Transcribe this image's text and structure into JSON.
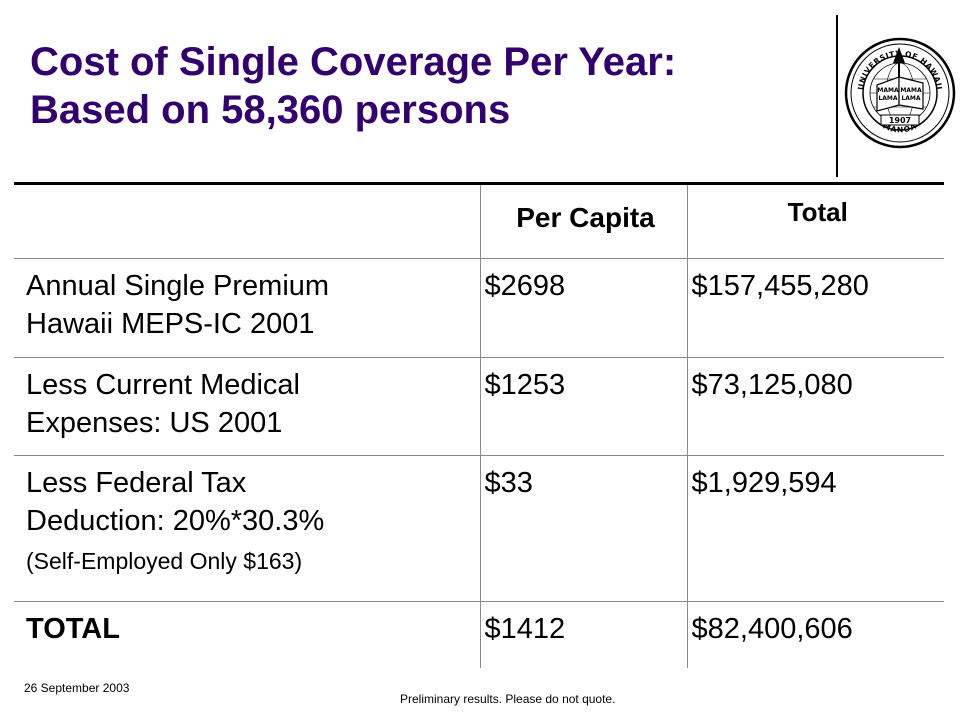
{
  "slide": {
    "title_line1": "Cost of Single Coverage Per Year:",
    "title_line2": "Based on 58,360 persons",
    "title_color": "#33006f"
  },
  "seal": {
    "icon": "university-seal-icon",
    "text_top": "UNIVERSITY OF HAWAII",
    "text_bottom": "MANOA",
    "year": "1907",
    "motto": [
      "MAMA",
      "LAMA",
      "MAMA",
      "LAMA"
    ]
  },
  "table": {
    "columns": [
      "",
      "Per Capita",
      "Total"
    ],
    "rows": [
      {
        "label_lines": [
          "Annual Single Premium",
          "Hawaii MEPS-IC 2001"
        ],
        "note": "",
        "per_capita": "$2698",
        "total": "$157,455,280"
      },
      {
        "label_lines": [
          "Less Current Medical",
          "Expenses: US 2001"
        ],
        "note": "",
        "per_capita": "$1253",
        "total": "$73,125,080"
      },
      {
        "label_lines": [
          "Less Federal Tax",
          "Deduction: 20%*30.3%"
        ],
        "note": "(Self-Employed Only $163)",
        "per_capita": "$33",
        "total": "$1,929,594"
      }
    ],
    "total_row": {
      "label": "TOTAL",
      "per_capita": "$1412",
      "total": "$82,400,606"
    }
  },
  "footer": {
    "date": "26 September 2003",
    "disclaimer": "Preliminary results.  Please do not quote."
  }
}
